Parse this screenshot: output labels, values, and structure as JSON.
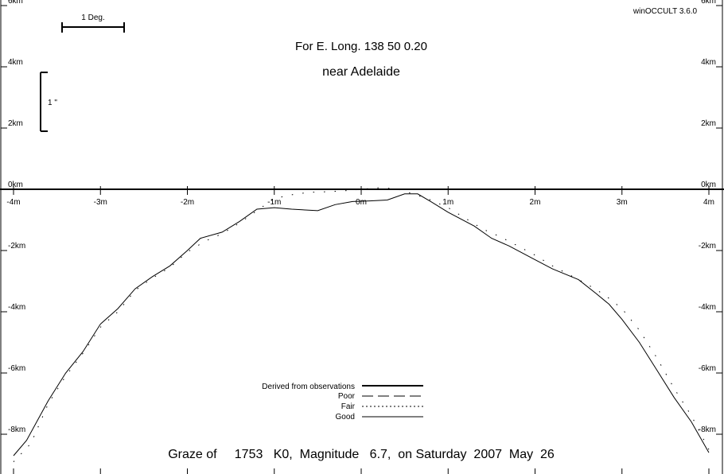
{
  "app_version": "winOCCULT 3.6.0",
  "title_line1": "For E. Long.  138 50  0.20",
  "title_line2": "near Adelaide",
  "footer": "Graze of     1753   K0,  Magnitude   6.7,  on Saturday  2007  May  26",
  "scale_deg_label": "1 Deg.",
  "scale_arcsec_label": "1 \"",
  "legend": {
    "derived": "Derived from observations",
    "poor": "Poor",
    "fair": "Fair",
    "good": "Good"
  },
  "chart_data": {
    "type": "line",
    "xlabel": "",
    "ylabel": "",
    "xlim": [
      -4,
      4
    ],
    "ylim": [
      -9,
      6
    ],
    "x_ticks": [
      "-4m",
      "-3m",
      "-2m",
      "-1m",
      "0m",
      "1m",
      "2m",
      "3m",
      "4m"
    ],
    "y_ticks_left": [
      "6km",
      "4km",
      "2km",
      "0km",
      "-2km",
      "-4km",
      "-6km",
      "-8km"
    ],
    "y_ticks_right": [
      "6km",
      "4km",
      "2km",
      "0km",
      "-2km",
      "-4km",
      "-6km",
      "-8km"
    ],
    "series": [
      {
        "name": "Good",
        "style": "solid",
        "x": [
          -4.0,
          -3.85,
          -3.6,
          -3.4,
          -3.2,
          -3.0,
          -2.8,
          -2.6,
          -2.4,
          -2.2,
          -2.0,
          -1.85,
          -1.6,
          -1.4,
          -1.2,
          -1.0,
          -0.8,
          -0.5,
          -0.3,
          -0.1,
          0.1,
          0.3,
          0.5,
          0.65,
          0.8,
          1.0,
          1.3,
          1.5,
          1.7,
          2.0,
          2.2,
          2.5,
          2.7,
          2.85,
          3.0,
          3.2,
          3.4,
          3.6,
          3.8,
          4.0
        ],
        "y": [
          -8.7,
          -8.2,
          -6.9,
          -6.0,
          -5.3,
          -4.4,
          -3.9,
          -3.25,
          -2.85,
          -2.5,
          -2.0,
          -1.6,
          -1.4,
          -1.05,
          -0.65,
          -0.6,
          -0.65,
          -0.7,
          -0.5,
          -0.4,
          -0.38,
          -0.35,
          -0.15,
          -0.15,
          -0.4,
          -0.75,
          -1.2,
          -1.6,
          -1.85,
          -2.3,
          -2.6,
          -2.95,
          -3.4,
          -3.75,
          -4.25,
          -5.0,
          -5.9,
          -6.8,
          -7.6,
          -8.6
        ]
      },
      {
        "name": "Fair",
        "style": "dotted",
        "x": [
          -4.0,
          -3.8,
          -3.6,
          -3.4,
          -3.2,
          -3.0,
          -2.8,
          -2.6,
          -2.4,
          -2.2,
          -2.0,
          -1.8,
          -1.6,
          -1.4,
          -1.2,
          -1.0,
          -0.8,
          -0.6,
          -0.4,
          -0.2,
          0.0,
          0.2,
          0.4,
          0.6,
          0.8,
          1.0,
          1.2,
          1.4,
          1.6,
          1.8,
          2.0,
          2.2,
          2.4,
          2.6,
          2.8,
          3.0,
          3.2,
          3.4,
          3.6,
          3.8,
          4.0
        ],
        "y": [
          -8.9,
          -8.3,
          -7.0,
          -6.1,
          -5.35,
          -4.5,
          -4.0,
          -3.3,
          -2.9,
          -2.55,
          -2.05,
          -1.7,
          -1.45,
          -1.1,
          -0.7,
          -0.3,
          -0.18,
          -0.1,
          -0.08,
          -0.05,
          0.0,
          0.05,
          0.02,
          -0.15,
          -0.35,
          -0.6,
          -0.95,
          -1.3,
          -1.55,
          -1.85,
          -2.15,
          -2.5,
          -2.8,
          -3.1,
          -3.45,
          -3.9,
          -4.6,
          -5.5,
          -6.5,
          -7.4,
          -8.5
        ]
      }
    ]
  }
}
